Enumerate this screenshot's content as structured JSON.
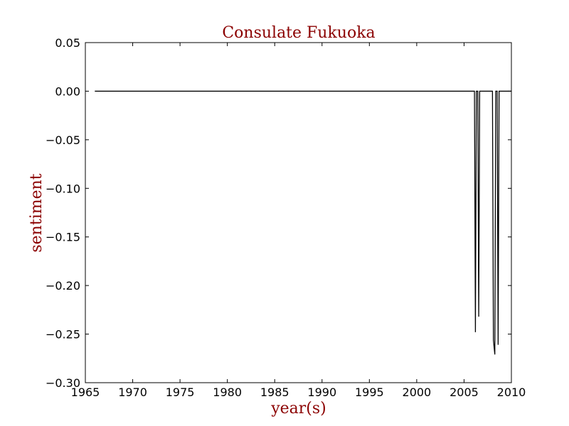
{
  "chart_data": {
    "type": "line",
    "title": "Consulate Fukuoka",
    "xlabel": "year(s)",
    "ylabel": "sentiment",
    "xlim": [
      1965,
      2010
    ],
    "ylim": [
      -0.3,
      0.05
    ],
    "xticks": [
      1965,
      1970,
      1975,
      1980,
      1985,
      1990,
      1995,
      2000,
      2005,
      2010
    ],
    "yticks": [
      0.05,
      0.0,
      -0.05,
      -0.1,
      -0.15,
      -0.2,
      -0.25,
      -0.3
    ],
    "xtick_labels": [
      "1965",
      "1970",
      "1975",
      "1980",
      "1985",
      "1990",
      "1995",
      "2000",
      "2005",
      "2010"
    ],
    "ytick_labels": [
      "0.05",
      "0.00",
      "−0.05",
      "−0.10",
      "−0.15",
      "−0.20",
      "−0.25",
      "−0.30"
    ],
    "grid": false,
    "colors": {
      "line": "#000000",
      "title": "#8b0000",
      "axis_label": "#8b0000"
    },
    "series": [
      {
        "x": [
          1966.0,
          2006.1,
          2006.2,
          2006.3,
          2006.45,
          2006.55,
          2006.65,
          2008.0,
          2008.1,
          2008.25,
          2008.35,
          2008.5,
          2008.6,
          2008.7,
          2010.0
        ],
        "y": [
          0.0,
          0.0,
          -0.248,
          0.0,
          0.0,
          -0.232,
          0.0,
          0.0,
          -0.256,
          -0.271,
          0.0,
          0.0,
          -0.261,
          0.0,
          0.0
        ]
      }
    ]
  }
}
